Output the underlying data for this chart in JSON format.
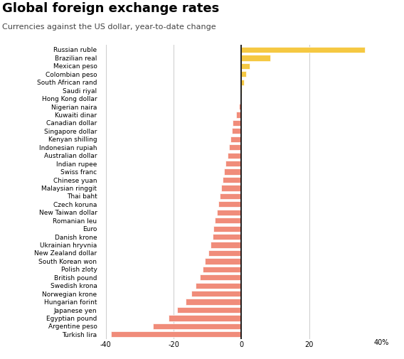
{
  "title": "Global foreign exchange rates",
  "subtitle": "Currencies against the US dollar, year-to-date change",
  "categories": [
    "Russian ruble",
    "Brazilian real",
    "Mexican peso",
    "Colombian peso",
    "South African rand",
    "Saudi riyal",
    "Hong Kong dollar",
    "Nigerian naira",
    "Kuwaiti dinar",
    "Canadian dollar",
    "Singapore dollar",
    "Kenyan shilling",
    "Indonesian rupiah",
    "Australian dollar",
    "Indian rupee",
    "Swiss franc",
    "Chinese yuan",
    "Malaysian ringgit",
    "Thai baht",
    "Czech koruna",
    "New Taiwan dollar",
    "Romanian leu",
    "Euro",
    "Danish krone",
    "Ukrainian hryvnia",
    "New Zealand dollar",
    "South Korean won",
    "Polish zloty",
    "British pound",
    "Swedish krona",
    "Norwegian krone",
    "Hungarian forint",
    "Japanese yen",
    "Egyptian pound",
    "Argentine peso",
    "Turkish lira"
  ],
  "values": [
    36.5,
    8.5,
    2.5,
    1.3,
    0.8,
    0.05,
    -0.3,
    -0.6,
    -1.5,
    -2.5,
    -2.9,
    -3.3,
    -3.7,
    -4.1,
    -4.6,
    -5.1,
    -5.5,
    -6.0,
    -6.4,
    -6.8,
    -7.3,
    -7.8,
    -8.2,
    -8.5,
    -9.0,
    -9.8,
    -10.8,
    -11.5,
    -12.2,
    -13.5,
    -14.8,
    -16.5,
    -19.0,
    -21.5,
    -26.0,
    -38.5
  ],
  "positive_color": "#f5c842",
  "negative_color": "#f08c7a",
  "xlim": [
    -42,
    45
  ],
  "xticks": [
    -40,
    -20,
    0,
    20
  ],
  "xlabel_suffix": "40%",
  "background_color": "#ffffff",
  "grid_color": "#cccccc",
  "title_fontsize": 13,
  "subtitle_fontsize": 8,
  "label_fontsize": 6.5
}
